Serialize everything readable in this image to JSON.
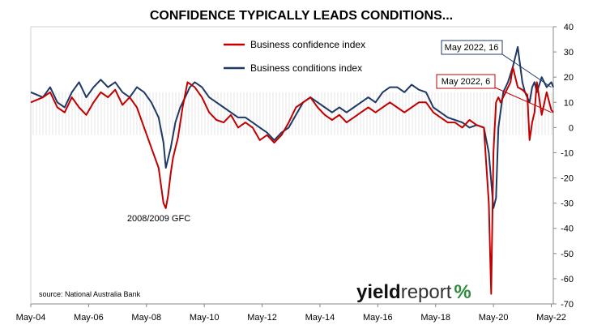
{
  "chart_data": {
    "type": "line",
    "title": "CONFIDENCE TYPICALLY LEADS CONDITIONS...",
    "source": "source: National Australia Bank",
    "logo": {
      "part1": "yield",
      "part2": "report",
      "part3": "%"
    },
    "x_tick_labels": [
      "May-04",
      "May-06",
      "May-08",
      "May-10",
      "May-12",
      "May-14",
      "May-16",
      "May-18",
      "May-20",
      "May-22"
    ],
    "x_range": [
      2004.33,
      2022.4
    ],
    "ylim": [
      -70,
      40
    ],
    "y_ticks": [
      40,
      30,
      20,
      10,
      0,
      -10,
      -20,
      -30,
      -40,
      -50,
      -60,
      -70
    ],
    "y_axis_side": "right",
    "legend_position": "top-center",
    "series": [
      {
        "name": "Business confidence index",
        "color": "#C00000",
        "x": [
          2004.33,
          2004.75,
          2005.0,
          2005.25,
          2005.5,
          2005.75,
          2006.0,
          2006.25,
          2006.5,
          2006.75,
          2007.0,
          2007.25,
          2007.5,
          2007.75,
          2008.0,
          2008.25,
          2008.5,
          2008.75,
          2008.92,
          2009.0,
          2009.08,
          2009.17,
          2009.25,
          2009.42,
          2009.58,
          2009.75,
          2010.0,
          2010.25,
          2010.5,
          2010.75,
          2011.0,
          2011.25,
          2011.5,
          2011.75,
          2012.0,
          2012.25,
          2012.5,
          2012.75,
          2013.0,
          2013.25,
          2013.5,
          2013.75,
          2014.0,
          2014.25,
          2014.5,
          2014.75,
          2015.0,
          2015.25,
          2015.5,
          2015.75,
          2016.0,
          2016.25,
          2016.5,
          2016.75,
          2017.0,
          2017.25,
          2017.5,
          2017.75,
          2018.0,
          2018.25,
          2018.5,
          2018.75,
          2019.0,
          2019.25,
          2019.5,
          2019.75,
          2020.0,
          2020.17,
          2020.25,
          2020.33,
          2020.42,
          2020.5,
          2020.58,
          2020.75,
          2020.92,
          2021.0,
          2021.17,
          2021.33,
          2021.5,
          2021.58,
          2021.67,
          2021.75,
          2021.83,
          2022.0,
          2022.17,
          2022.33,
          2022.4
        ],
        "y": [
          10,
          12,
          14,
          8,
          6,
          12,
          8,
          5,
          10,
          14,
          12,
          15,
          9,
          12,
          8,
          0,
          -8,
          -16,
          -30,
          -32,
          -27,
          -18,
          -12,
          -4,
          8,
          18,
          16,
          12,
          6,
          3,
          2,
          5,
          0,
          2,
          0,
          -5,
          -3,
          -6,
          -3,
          2,
          8,
          10,
          12,
          8,
          5,
          3,
          5,
          2,
          4,
          6,
          8,
          6,
          8,
          10,
          8,
          6,
          8,
          10,
          10,
          6,
          4,
          2,
          2,
          0,
          3,
          1,
          0,
          -30,
          -66,
          -10,
          10,
          12,
          10,
          14,
          18,
          24,
          16,
          15,
          13,
          -5,
          2,
          6,
          18,
          5,
          14,
          7,
          6
        ]
      },
      {
        "name": "Business conditions index",
        "color": "#1F3864",
        "x": [
          2004.33,
          2004.75,
          2005.0,
          2005.25,
          2005.5,
          2005.75,
          2006.0,
          2006.25,
          2006.5,
          2006.75,
          2007.0,
          2007.25,
          2007.5,
          2007.75,
          2008.0,
          2008.25,
          2008.5,
          2008.75,
          2008.92,
          2009.0,
          2009.17,
          2009.33,
          2009.5,
          2009.67,
          2009.83,
          2010.0,
          2010.25,
          2010.5,
          2010.75,
          2011.0,
          2011.25,
          2011.5,
          2011.75,
          2012.0,
          2012.25,
          2012.5,
          2012.75,
          2013.0,
          2013.25,
          2013.5,
          2013.75,
          2014.0,
          2014.25,
          2014.5,
          2014.75,
          2015.0,
          2015.25,
          2015.5,
          2015.75,
          2016.0,
          2016.25,
          2016.5,
          2016.75,
          2017.0,
          2017.25,
          2017.5,
          2017.75,
          2018.0,
          2018.25,
          2018.5,
          2018.75,
          2019.0,
          2019.25,
          2019.5,
          2019.75,
          2020.0,
          2020.17,
          2020.33,
          2020.42,
          2020.5,
          2020.67,
          2020.83,
          2021.0,
          2021.17,
          2021.33,
          2021.42,
          2021.5,
          2021.58,
          2021.67,
          2021.75,
          2021.83,
          2022.0,
          2022.17,
          2022.33,
          2022.4
        ],
        "y": [
          14,
          12,
          16,
          10,
          8,
          14,
          18,
          12,
          16,
          19,
          16,
          18,
          14,
          12,
          16,
          14,
          10,
          4,
          -6,
          -16,
          -8,
          2,
          8,
          12,
          16,
          18,
          16,
          12,
          10,
          8,
          6,
          4,
          4,
          2,
          0,
          -2,
          -5,
          -2,
          0,
          5,
          10,
          12,
          10,
          8,
          6,
          8,
          6,
          8,
          10,
          12,
          10,
          14,
          16,
          16,
          14,
          17,
          15,
          14,
          8,
          6,
          4,
          3,
          2,
          0,
          1,
          0,
          -10,
          -32,
          -28,
          0,
          14,
          18,
          24,
          32,
          18,
          14,
          12,
          10,
          16,
          18,
          14,
          20,
          16,
          18,
          16
        ]
      }
    ],
    "annotations": [
      {
        "text": "2008/2009 GFC",
        "x": 2009.0,
        "y": -36
      },
      {
        "text": "May 2022, 16",
        "series": "Business conditions index",
        "x": 2022.33,
        "y": 16
      },
      {
        "text": "May 2022, 6",
        "series": "Business confidence index",
        "x": 2022.33,
        "y": 6
      }
    ]
  }
}
